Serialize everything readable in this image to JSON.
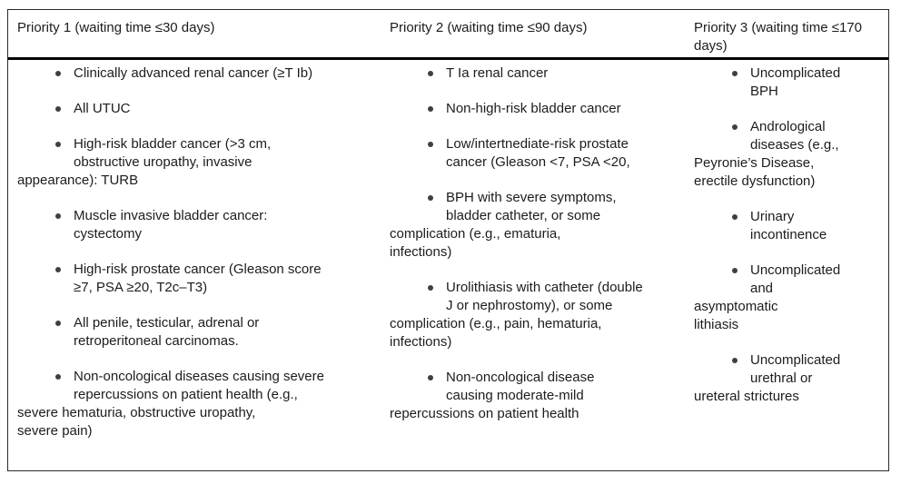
{
  "colors": {
    "background": "#ffffff",
    "text": "#1c1c1c",
    "border": "#2a2a2a",
    "rule": "#000000",
    "bullet": "#3f3f3f"
  },
  "icons": {
    "bullet": "●"
  },
  "table": {
    "columns": [
      {
        "header": "Priority 1 (waiting time ≤30 days)",
        "items": [
          {
            "indent_lines": [
              "Clinically advanced renal cancer (≥T Ib)"
            ],
            "flush_lines": []
          },
          {
            "indent_lines": [
              "All UTUC"
            ],
            "flush_lines": []
          },
          {
            "indent_lines": [
              "High-risk bladder cancer (>3 cm,",
              "obstructive uropathy, invasive"
            ],
            "flush_lines": [
              "appearance): TURB"
            ]
          },
          {
            "indent_lines": [
              "Muscle invasive bladder cancer:",
              "cystectomy"
            ],
            "flush_lines": []
          },
          {
            "indent_lines": [
              "High-risk prostate cancer (Gleason score",
              "≥7, PSA ≥20, T2c–T3)"
            ],
            "flush_lines": []
          },
          {
            "indent_lines": [
              "All penile, testicular, adrenal or",
              "retroperitoneal carcinomas."
            ],
            "flush_lines": []
          },
          {
            "indent_lines": [
              "Non-oncological diseases causing severe",
              "repercussions on patient health (e.g.,"
            ],
            "flush_lines": [
              "severe hematuria, obstructive uropathy,",
              "severe pain)"
            ]
          }
        ]
      },
      {
        "header": "Priority 2 (waiting time ≤90 days)",
        "items": [
          {
            "indent_lines": [
              "T Ia renal cancer"
            ],
            "flush_lines": []
          },
          {
            "indent_lines": [
              "Non-high-risk bladder cancer"
            ],
            "flush_lines": []
          },
          {
            "indent_lines": [
              "Low/intertnediate-risk prostate",
              "cancer (Gleason <7, PSA <20,"
            ],
            "flush_lines": []
          },
          {
            "indent_lines": [
              "BPH with severe symptoms,",
              "bladder catheter, or some"
            ],
            "flush_lines": [
              "complication (e.g., ematuria,",
              "infections)"
            ]
          },
          {
            "indent_lines": [
              "Urolithiasis with catheter (double",
              "J or nephrostomy), or some"
            ],
            "flush_lines": [
              "complication (e.g., pain, hematuria,",
              "infections)"
            ]
          },
          {
            "indent_lines": [
              "Non-oncological disease",
              "causing moderate-mild"
            ],
            "flush_lines": [
              "repercussions on patient health"
            ]
          }
        ]
      },
      {
        "header": "Priority 3 (waiting time ≤170 days)",
        "items": [
          {
            "indent_lines": [
              "Uncomplicated",
              "BPH"
            ],
            "flush_lines": []
          },
          {
            "indent_lines": [
              "Andrological",
              "diseases (e.g.,"
            ],
            "flush_lines": [
              "Peyronie’s Disease,",
              "erectile dysfunction)"
            ]
          },
          {
            "indent_lines": [
              "Urinary",
              "incontinence"
            ],
            "flush_lines": []
          },
          {
            "indent_lines": [
              "Uncomplicated",
              "and"
            ],
            "flush_lines": [
              "asymptomatic",
              "lithiasis"
            ]
          },
          {
            "indent_lines": [
              "Uncomplicated",
              "urethral or"
            ],
            "flush_lines": [
              "ureteral strictures"
            ]
          }
        ]
      }
    ]
  }
}
